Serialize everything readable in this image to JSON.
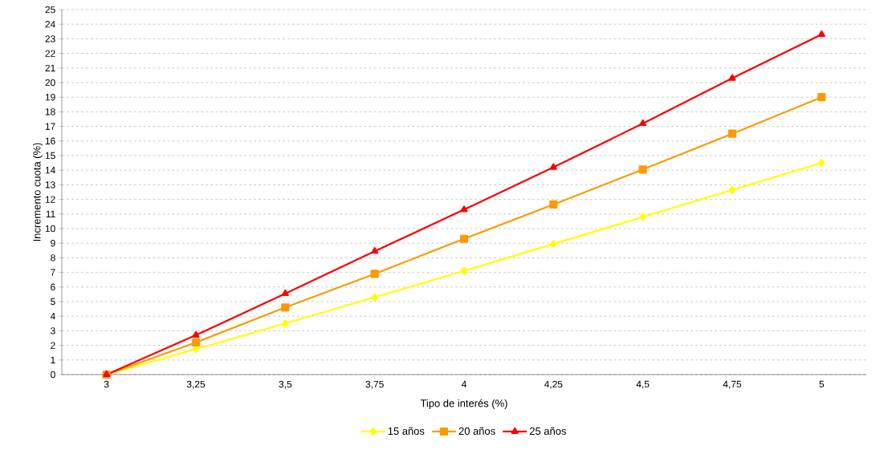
{
  "chart_data": {
    "type": "line",
    "xlabel": "Tipo de interés (%)",
    "ylabel": "Incremento cuota (%)",
    "categories": [
      "3",
      "3,25",
      "3,5",
      "3,75",
      "4",
      "4,25",
      "4,5",
      "4,75",
      "5"
    ],
    "series": [
      {
        "name": "15 años",
        "color": "#ffff00",
        "marker": "diamond",
        "values": [
          0,
          1.75,
          3.5,
          5.3,
          7.1,
          8.95,
          10.8,
          12.65,
          14.5
        ]
      },
      {
        "name": "20 años",
        "color": "#ff9900",
        "marker": "square",
        "values": [
          0,
          2.2,
          4.6,
          6.9,
          9.3,
          11.65,
          14.05,
          16.5,
          19.0
        ]
      },
      {
        "name": "25 años",
        "color": "#ff0000",
        "marker": "triangle",
        "values": [
          0,
          2.7,
          5.55,
          8.45,
          11.3,
          14.2,
          17.2,
          20.3,
          23.3
        ]
      }
    ],
    "ylim": [
      0,
      25
    ],
    "yticks": [
      0,
      1,
      2,
      3,
      4,
      5,
      6,
      7,
      8,
      9,
      10,
      11,
      12,
      13,
      14,
      15,
      16,
      17,
      18,
      19,
      20,
      21,
      22,
      23,
      24,
      25
    ],
    "grid": "y",
    "legend": "bottom",
    "line_style": "solid"
  }
}
